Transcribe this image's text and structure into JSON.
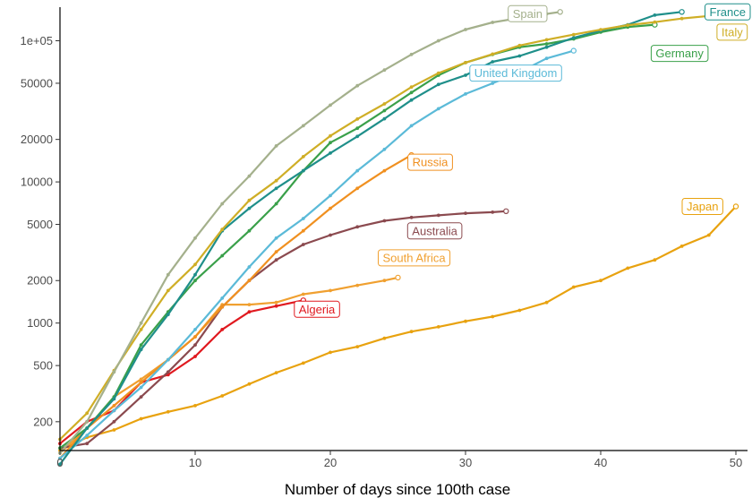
{
  "chart_data": {
    "type": "line",
    "title": "",
    "xlabel": "Number of days since 100th case",
    "ylabel": "",
    "y_scale": "log",
    "xlim": [
      0,
      52
    ],
    "ylim": [
      100,
      180000
    ],
    "grid": false,
    "legend": "labels at line ends",
    "x_ticks": [
      0,
      10,
      20,
      30,
      40,
      50
    ],
    "x_tick_labels": [
      "0",
      "10",
      "20",
      "30",
      "40",
      "50"
    ],
    "y_ticks": [
      200,
      500,
      1000,
      2000,
      5000,
      10000,
      20000,
      50000,
      100000
    ],
    "y_tick_labels": [
      "200",
      "500",
      "1000",
      "2000",
      "5000",
      "10000",
      "20000",
      "50000",
      "1e+05"
    ],
    "series": [
      {
        "name": "Japan",
        "color": "#e8a20f",
        "x": [
          0,
          2,
          4,
          6,
          8,
          10,
          12,
          14,
          16,
          18,
          20,
          22,
          24,
          26,
          28,
          30,
          32,
          34,
          36,
          38,
          40,
          42,
          44,
          46,
          48,
          50
        ],
        "y": [
          125,
          155,
          175,
          210,
          235,
          260,
          305,
          370,
          445,
          520,
          620,
          680,
          780,
          870,
          940,
          1030,
          1110,
          1230,
          1400,
          1800,
          2000,
          2450,
          2800,
          3500,
          4200,
          6700
        ]
      },
      {
        "name": "Algeria",
        "color": "#e0191f",
        "x": [
          0,
          2,
          4,
          6,
          8,
          10,
          12,
          14,
          16,
          18
        ],
        "y": [
          140,
          200,
          240,
          380,
          430,
          580,
          900,
          1200,
          1320,
          1450
        ]
      },
      {
        "name": "South Africa",
        "color": "#f0a030",
        "x": [
          0,
          2,
          4,
          6,
          8,
          10,
          12,
          14,
          16,
          18,
          20,
          22,
          24,
          25
        ],
        "y": [
          120,
          180,
          300,
          400,
          550,
          800,
          1350,
          1350,
          1400,
          1600,
          1700,
          1850,
          2000,
          2100
        ]
      },
      {
        "name": "Australia",
        "color": "#8b4a4f",
        "x": [
          0,
          2,
          4,
          6,
          8,
          10,
          12,
          14,
          16,
          18,
          20,
          22,
          24,
          26,
          28,
          30,
          32,
          33
        ],
        "y": [
          130,
          140,
          200,
          300,
          450,
          700,
          1300,
          2000,
          2800,
          3600,
          4200,
          4800,
          5300,
          5600,
          5800,
          6000,
          6100,
          6200
        ]
      },
      {
        "name": "Russia",
        "color": "#f09020",
        "x": [
          0,
          2,
          4,
          6,
          8,
          10,
          12,
          14,
          16,
          18,
          20,
          22,
          24,
          26
        ],
        "y": [
          110,
          180,
          260,
          380,
          550,
          800,
          1300,
          2000,
          3200,
          4500,
          6500,
          9000,
          12000,
          15500
        ]
      },
      {
        "name": "United Kingdom",
        "color": "#5bbad8",
        "x": [
          0,
          2,
          4,
          6,
          8,
          10,
          12,
          14,
          16,
          18,
          20,
          22,
          24,
          26,
          28,
          30,
          32,
          34,
          36,
          38
        ],
        "y": [
          110,
          160,
          240,
          350,
          550,
          900,
          1500,
          2500,
          4000,
          5500,
          8000,
          12000,
          17000,
          25000,
          33000,
          42000,
          50000,
          60000,
          75000,
          85000
        ]
      },
      {
        "name": "Germany",
        "color": "#3aa04a",
        "x": [
          0,
          2,
          4,
          6,
          8,
          10,
          12,
          14,
          16,
          18,
          20,
          22,
          24,
          26,
          28,
          30,
          32,
          34,
          36,
          38,
          40,
          42,
          44
        ],
        "y": [
          130,
          180,
          300,
          700,
          1200,
          2000,
          3000,
          4500,
          7000,
          12000,
          19000,
          24000,
          32000,
          43000,
          57000,
          70000,
          80000,
          90000,
          95000,
          103000,
          115000,
          125000,
          130000
        ]
      },
      {
        "name": "France",
        "color": "#1f8f8a",
        "x": [
          0,
          2,
          4,
          6,
          8,
          10,
          12,
          14,
          16,
          18,
          20,
          22,
          24,
          26,
          28,
          30,
          32,
          34,
          36,
          38,
          40,
          42,
          44,
          46
        ],
        "y": [
          100,
          180,
          290,
          650,
          1150,
          2200,
          4500,
          6500,
          9000,
          12000,
          16000,
          21000,
          28000,
          38000,
          49000,
          57000,
          71000,
          78000,
          90000,
          105000,
          118000,
          130000,
          152000,
          160000
        ]
      },
      {
        "name": "Italy",
        "color": "#cfae26",
        "x": [
          0,
          2,
          4,
          6,
          8,
          10,
          12,
          14,
          16,
          18,
          20,
          22,
          24,
          26,
          28,
          30,
          32,
          34,
          36,
          38,
          40,
          42,
          44,
          46,
          48,
          49
        ],
        "y": [
          150,
          230,
          460,
          900,
          1700,
          2600,
          4600,
          7400,
          10200,
          15100,
          21200,
          27900,
          35700,
          47000,
          59000,
          70000,
          80500,
          92500,
          101700,
          110600,
          119800,
          128900,
          135600,
          143600,
          150000,
          152000
        ]
      },
      {
        "name": "Spain",
        "color": "#a4b08c",
        "x": [
          0,
          2,
          4,
          6,
          8,
          10,
          12,
          14,
          16,
          18,
          20,
          22,
          24,
          26,
          28,
          30,
          32,
          34,
          36,
          37
        ],
        "y": [
          120,
          200,
          450,
          1000,
          2200,
          4000,
          7000,
          11000,
          18000,
          25000,
          35000,
          48000,
          62000,
          80000,
          100000,
          120000,
          135000,
          145000,
          155000,
          160000
        ]
      }
    ],
    "labels": [
      {
        "series": "Spain",
        "text": "Spain",
        "color": "#a4b08c"
      },
      {
        "series": "France",
        "text": "France",
        "color": "#1f8f8a"
      },
      {
        "series": "Italy",
        "text": "Italy",
        "color": "#cfae26"
      },
      {
        "series": "Germany",
        "text": "Germany",
        "color": "#3aa04a"
      },
      {
        "series": "United Kingdom",
        "text": "United Kingdom",
        "color": "#5bbad8"
      },
      {
        "series": "Russia",
        "text": "Russia",
        "color": "#f09020"
      },
      {
        "series": "Japan",
        "text": "Japan",
        "color": "#e8a20f"
      },
      {
        "series": "Australia",
        "text": "Australia",
        "color": "#8b4a4f"
      },
      {
        "series": "South Africa",
        "text": "South Africa",
        "color": "#f0a030"
      },
      {
        "series": "Algeria",
        "text": "Algeria",
        "color": "#e0191f"
      }
    ]
  }
}
